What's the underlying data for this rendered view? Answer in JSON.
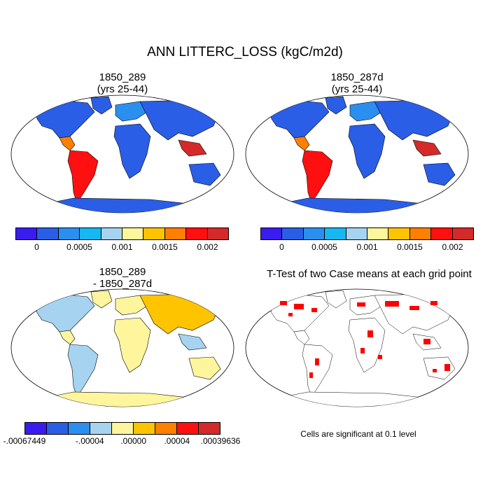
{
  "title": "ANN LITTERC_LOSS (kgC/m2d)",
  "panels": [
    {
      "title_line1": "1850_289",
      "title_line2": "(yrs 25-44)"
    },
    {
      "title_line1": "1850_287d",
      "title_line2": "(yrs 25-44)"
    },
    {
      "title_line1": "1850_289",
      "title_line2": "- 1850_287d"
    },
    {
      "title_line1": "T-Test of two Case means at each grid point",
      "title_line2": ""
    }
  ],
  "colorbar_case": {
    "colors": [
      "#3b1cf0",
      "#2a5ee6",
      "#2b8ff0",
      "#17b7f2",
      "#a6d4f0",
      "#fff59c",
      "#ffc400",
      "#ff7f00",
      "#ff1010",
      "#d42a2a"
    ],
    "ticks": [
      "0",
      "0.0005",
      "0.001",
      "0.0015",
      "0.002"
    ]
  },
  "colorbar_diff": {
    "colors": [
      "#3b1cf0",
      "#2a5ee6",
      "#2b8ff0",
      "#a6d4f0",
      "#fff59c",
      "#ffc400",
      "#ff7f00",
      "#ff1010",
      "#d42a2a"
    ],
    "ticks": [
      "-.00067449",
      "-.00004",
      ".00000",
      ".00004",
      ".00039636"
    ]
  },
  "note": "Cells are significant at 0.1 level"
}
